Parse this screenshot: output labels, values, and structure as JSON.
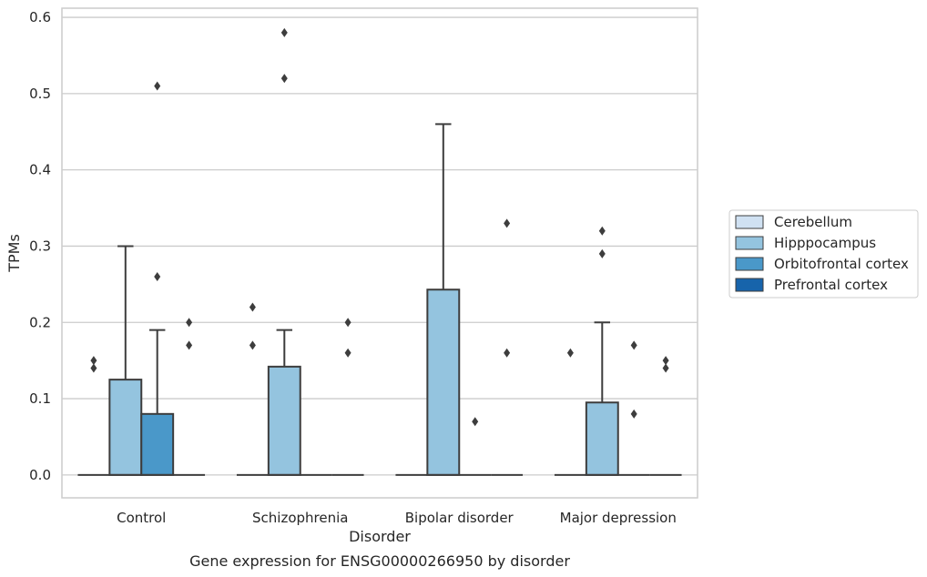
{
  "chart_data": {
    "type": "box",
    "xlabel": "Disorder",
    "ylabel": "TPMs",
    "caption": "Gene expression for ENSG00000266950 by disorder",
    "ylim": [
      -0.03,
      0.612
    ],
    "yticks": [
      "0.0",
      "0.1",
      "0.2",
      "0.3",
      "0.4",
      "0.5",
      "0.6"
    ],
    "ytick_values": [
      0.0,
      0.1,
      0.2,
      0.3,
      0.4,
      0.5,
      0.6
    ],
    "grid": "horizontal",
    "legend_position": "right",
    "categories": [
      "Control",
      "Schizophrenia",
      "Bipolar disorder",
      "Major depression"
    ],
    "series": [
      {
        "name": "Cerebellum",
        "color": "#d0e1f2",
        "boxes": [
          {
            "q1": 0,
            "median": 0,
            "q3": 0,
            "whisker_low": 0,
            "whisker_high": 0,
            "outliers": [
              0.15,
              0.14
            ]
          },
          {
            "q1": 0,
            "median": 0,
            "q3": 0,
            "whisker_low": 0,
            "whisker_high": 0,
            "outliers": [
              0.22,
              0.17
            ]
          },
          {
            "q1": 0,
            "median": 0,
            "q3": 0,
            "whisker_low": 0,
            "whisker_high": 0,
            "outliers": []
          },
          {
            "q1": 0,
            "median": 0,
            "q3": 0,
            "whisker_low": 0,
            "whisker_high": 0,
            "outliers": [
              0.16
            ]
          }
        ]
      },
      {
        "name": "Hipppocampus",
        "color": "#94c4df",
        "boxes": [
          {
            "q1": 0,
            "median": 0,
            "q3": 0.125,
            "whisker_low": 0,
            "whisker_high": 0.3,
            "outliers": []
          },
          {
            "q1": 0,
            "median": 0,
            "q3": 0.142,
            "whisker_low": 0,
            "whisker_high": 0.19,
            "outliers": [
              0.58,
              0.52
            ]
          },
          {
            "q1": 0,
            "median": 0,
            "q3": 0.243,
            "whisker_low": 0,
            "whisker_high": 0.46,
            "outliers": []
          },
          {
            "q1": 0,
            "median": 0,
            "q3": 0.095,
            "whisker_low": 0,
            "whisker_high": 0.2,
            "outliers": [
              0.32,
              0.29
            ]
          }
        ]
      },
      {
        "name": "Orbitofrontal cortex",
        "color": "#4a98c9",
        "boxes": [
          {
            "q1": 0,
            "median": 0,
            "q3": 0.08,
            "whisker_low": 0,
            "whisker_high": 0.19,
            "outliers": [
              0.51,
              0.26
            ]
          },
          {
            "q1": 0,
            "median": 0,
            "q3": 0,
            "whisker_low": 0,
            "whisker_high": 0,
            "outliers": []
          },
          {
            "q1": 0,
            "median": 0,
            "q3": 0,
            "whisker_low": 0,
            "whisker_high": 0,
            "outliers": [
              0.07
            ]
          },
          {
            "q1": 0,
            "median": 0,
            "q3": 0,
            "whisker_low": 0,
            "whisker_high": 0,
            "outliers": [
              0.17,
              0.08
            ]
          }
        ]
      },
      {
        "name": "Prefrontal cortex",
        "color": "#1764ab",
        "boxes": [
          {
            "q1": 0,
            "median": 0,
            "q3": 0,
            "whisker_low": 0,
            "whisker_high": 0,
            "outliers": [
              0.2,
              0.17
            ]
          },
          {
            "q1": 0,
            "median": 0,
            "q3": 0,
            "whisker_low": 0,
            "whisker_high": 0,
            "outliers": [
              0.2,
              0.16
            ]
          },
          {
            "q1": 0,
            "median": 0,
            "q3": 0,
            "whisker_low": 0,
            "whisker_high": 0,
            "outliers": [
              0.33,
              0.16
            ]
          },
          {
            "q1": 0,
            "median": 0,
            "q3": 0,
            "whisker_low": 0,
            "whisker_high": 0,
            "outliers": [
              0.15,
              0.14
            ]
          }
        ]
      }
    ]
  }
}
